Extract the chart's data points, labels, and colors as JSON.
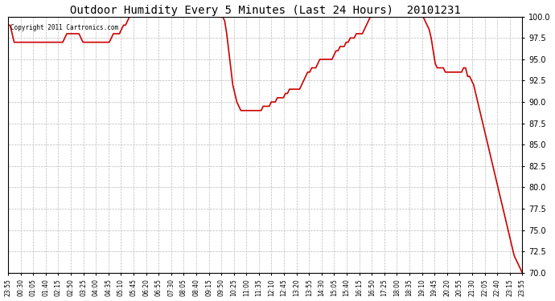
{
  "title": "Outdoor Humidity Every 5 Minutes (Last 24 Hours)  20101231",
  "copyright_text": "Copyright 2011 Cartronics.com",
  "ylim": [
    70.0,
    100.0
  ],
  "yticks": [
    70.0,
    72.5,
    75.0,
    77.5,
    80.0,
    82.5,
    85.0,
    87.5,
    90.0,
    92.5,
    95.0,
    97.5,
    100.0
  ],
  "line_color": "#cc0000",
  "line_width": 1.2,
  "bg_color": "#ffffff",
  "grid_color": "#bbbbbb",
  "x_labels": [
    "23:55",
    "00:30",
    "01:05",
    "01:40",
    "02:15",
    "02:50",
    "03:25",
    "04:00",
    "04:35",
    "05:10",
    "05:45",
    "06:20",
    "06:55",
    "07:30",
    "08:05",
    "08:40",
    "09:15",
    "09:50",
    "10:25",
    "11:00",
    "11:35",
    "12:10",
    "12:45",
    "13:20",
    "13:55",
    "14:30",
    "15:05",
    "15:40",
    "16:15",
    "16:50",
    "17:25",
    "18:00",
    "18:35",
    "19:10",
    "19:45",
    "20:20",
    "20:55",
    "21:30",
    "22:05",
    "22:40",
    "23:15",
    "23:55"
  ],
  "humidity_values": [
    99.0,
    99.0,
    98.0,
    97.0,
    97.0,
    97.0,
    97.0,
    97.0,
    97.0,
    97.0,
    97.0,
    97.0,
    97.0,
    97.0,
    97.0,
    97.0,
    97.0,
    97.0,
    97.0,
    97.0,
    97.0,
    97.0,
    97.0,
    97.0,
    97.0,
    97.0,
    97.0,
    97.0,
    97.5,
    98.0,
    98.0,
    98.0,
    98.0,
    98.0,
    98.0,
    98.0,
    97.5,
    97.0,
    97.0,
    97.0,
    97.0,
    97.0,
    97.0,
    97.0,
    97.0,
    97.0,
    97.0,
    97.0,
    97.0,
    97.0,
    97.0,
    97.5,
    98.0,
    98.0,
    98.0,
    98.0,
    98.5,
    99.0,
    99.0,
    99.5,
    100.0,
    100.0,
    100.0,
    100.0,
    100.0,
    100.0,
    100.0,
    100.0,
    100.0,
    100.0,
    100.0,
    100.0,
    100.0,
    100.0,
    100.0,
    100.0,
    100.0,
    100.0,
    100.0,
    100.0,
    100.0,
    100.0,
    100.0,
    100.0,
    100.0,
    100.0,
    100.0,
    100.0,
    100.0,
    100.0,
    100.0,
    100.0,
    100.0,
    100.0,
    100.0,
    100.0,
    100.0,
    100.0,
    100.0,
    100.0,
    100.0,
    100.0,
    100.0,
    100.0,
    100.0,
    100.0,
    100.0,
    99.5,
    98.0,
    96.0,
    94.0,
    92.0,
    91.0,
    90.0,
    89.5,
    89.0,
    89.0,
    89.0,
    89.0,
    89.0,
    89.0,
    89.0,
    89.0,
    89.0,
    89.0,
    89.0,
    89.5,
    89.5,
    89.5,
    89.5,
    90.0,
    90.0,
    90.0,
    90.5,
    90.5,
    90.5,
    90.5,
    91.0,
    91.0,
    91.5,
    91.5,
    91.5,
    91.5,
    91.5,
    91.5,
    92.0,
    92.5,
    93.0,
    93.5,
    93.5,
    94.0,
    94.0,
    94.0,
    94.5,
    95.0,
    95.0,
    95.0,
    95.0,
    95.0,
    95.0,
    95.0,
    95.5,
    96.0,
    96.0,
    96.5,
    96.5,
    96.5,
    97.0,
    97.0,
    97.5,
    97.5,
    97.5,
    98.0,
    98.0,
    98.0,
    98.0,
    98.5,
    99.0,
    99.5,
    100.0,
    100.0,
    100.0,
    100.0,
    100.0,
    100.0,
    100.0,
    100.0,
    100.0,
    100.0,
    100.0,
    100.0,
    100.0,
    100.0,
    100.0,
    100.0,
    100.0,
    100.0,
    100.0,
    100.0,
    100.0,
    100.0,
    100.0,
    100.0,
    100.0,
    100.0,
    100.0,
    99.5,
    99.0,
    98.5,
    97.5,
    96.0,
    94.5,
    94.0,
    94.0,
    94.0,
    94.0,
    93.5,
    93.5,
    93.5,
    93.5,
    93.5,
    93.5,
    93.5,
    93.5,
    93.5,
    94.0,
    94.0,
    93.0,
    93.0,
    92.5,
    92.0,
    91.0,
    90.0,
    89.0,
    88.0,
    87.0,
    86.0,
    85.0,
    84.0,
    83.0,
    82.0,
    81.0,
    80.0,
    79.0,
    78.0,
    77.0,
    76.0,
    75.0,
    74.0,
    73.0,
    72.0,
    71.5,
    71.0,
    70.5,
    70.0
  ]
}
